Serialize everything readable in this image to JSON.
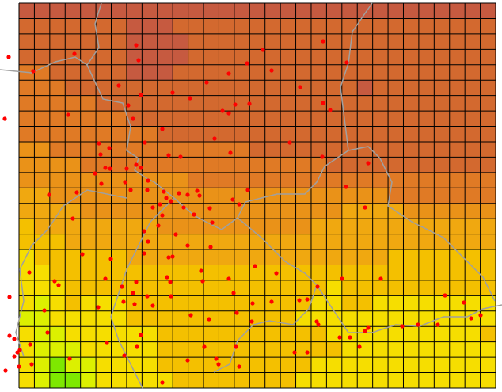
{
  "map": {
    "palette": [
      "#c65a40",
      "#d3692f",
      "#e07a25",
      "#ea9218",
      "#f0a810",
      "#f4c000",
      "#f6de00",
      "#dcf000",
      "#7ee800"
    ],
    "cells": [
      "0000000000000000000000000000000",
      "1111111000111111111111111111111",
      "1111111000011111111111111111111",
      "1111111000011111111111111111111",
      "2211111000111111111111111111111",
      "2221111111111111111111011111111",
      "2222211111111111111111111111111",
      "2222222111111111111111111111111",
      "2222222221111111111111111111111",
      "3322222222222221111111111111111",
      "3333222222222222222211111111111",
      "3333333333322222222222222222222",
      "4433333333333333333333332222222",
      "4444333333333333333334444333333",
      "5444444443333333333444444444444",
      "5554444444444444444444444444444",
      "6555555444444444444444445555555",
      "6655555555555555555555555555555",
      "6665555555555555555565555555555",
      "6765666555555555555665566666666",
      "7766666555555555556666666666666",
      "6776666665555555555566666666665",
      "6777666665555555555556666666666",
      "6787766665555555555666666666666",
      "6788766666555555556666666666666"
    ]
  }
}
